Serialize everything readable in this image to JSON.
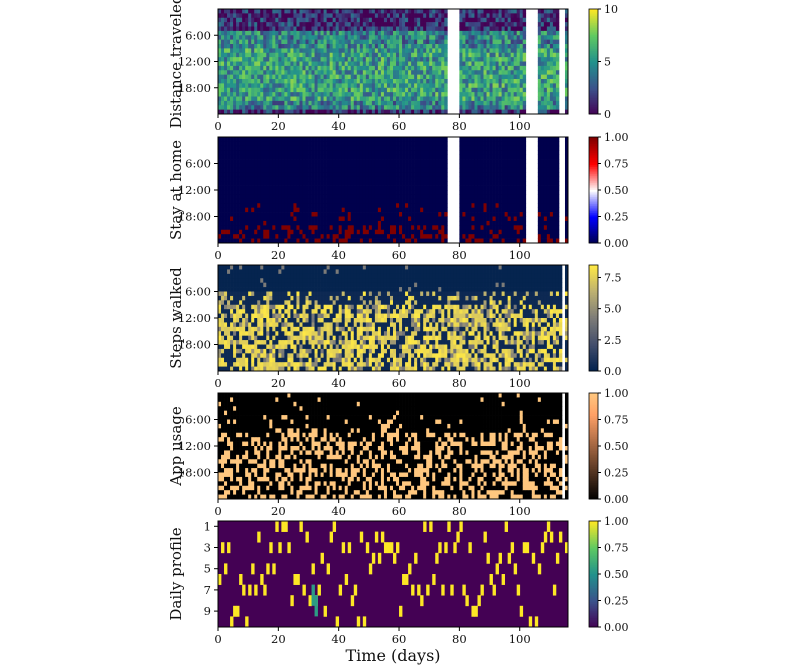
{
  "chart_data": [
    {
      "type": "heatmap",
      "ylabel": "Distance traveled",
      "xlim": [
        0,
        116
      ],
      "xticks": [
        0,
        20,
        40,
        60,
        80,
        100
      ],
      "yticks": [
        "6:00",
        "12:00",
        "18:00"
      ],
      "colormap": "viridis",
      "colorbar": {
        "min": 0,
        "max": 10,
        "ticks": [
          0,
          5,
          10
        ]
      },
      "missing_days": [
        [
          76,
          80
        ],
        [
          102,
          106
        ],
        [
          113,
          115
        ]
      ]
    },
    {
      "type": "heatmap",
      "ylabel": "Stay at home",
      "xlim": [
        0,
        116
      ],
      "xticks": [
        0,
        20,
        40,
        60,
        80,
        100
      ],
      "yticks": [
        "6:00",
        "12:00",
        "18:00"
      ],
      "colormap": "seismic",
      "colorbar": {
        "min": 0.0,
        "max": 1.0,
        "ticks": [
          "0.00",
          "0.25",
          "0.50",
          "0.75",
          "1.00"
        ]
      },
      "missing_days": [
        [
          76,
          80
        ],
        [
          102,
          106
        ],
        [
          113,
          115
        ]
      ]
    },
    {
      "type": "heatmap",
      "ylabel": "Steps walked",
      "xlim": [
        0,
        116
      ],
      "xticks": [
        0,
        20,
        40,
        60,
        80,
        100
      ],
      "yticks": [
        "6:00",
        "12:00",
        "18:00"
      ],
      "colormap": "cividis",
      "colorbar": {
        "min": 0.0,
        "max": 8.5,
        "ticks": [
          "0.0",
          "2.5",
          "5.0",
          "7.5"
        ]
      },
      "missing_days": [
        [
          114,
          115
        ]
      ]
    },
    {
      "type": "heatmap",
      "ylabel": "App usage",
      "xlim": [
        0,
        116
      ],
      "xticks": [
        0,
        20,
        40,
        60,
        80,
        100
      ],
      "yticks": [
        "6:00",
        "12:00",
        "18:00"
      ],
      "colormap": "copper",
      "colorbar": {
        "min": 0.0,
        "max": 1.0,
        "ticks": [
          "0.00",
          "0.25",
          "0.50",
          "0.75",
          "1.00"
        ]
      },
      "missing_days": [
        [
          114,
          115
        ]
      ]
    },
    {
      "type": "heatmap",
      "ylabel": "Daily profile",
      "xlabel": "Time (days)",
      "xlim": [
        0,
        116
      ],
      "xticks": [
        0,
        20,
        40,
        60,
        80,
        100
      ],
      "yticks": [
        "1",
        "3",
        "5",
        "7",
        "9"
      ],
      "colormap": "viridis",
      "colorbar": {
        "min": 0.0,
        "max": 1.0,
        "ticks": [
          "0.00",
          "0.25",
          "0.50",
          "0.75",
          "1.00"
        ]
      },
      "missing_days": [
        [
          114,
          115
        ]
      ]
    }
  ]
}
